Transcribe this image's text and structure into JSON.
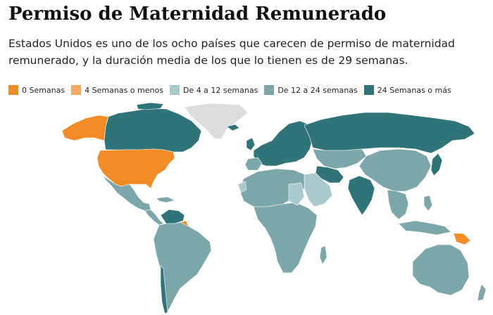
{
  "title": "Permiso de Maternidad Remunerado",
  "subtitle": "Estados Unidos es uno de los ocho países que carecen de permiso de maternidad remunerado, y la duración media de los que lo tienen es de 29 semanas.",
  "legend": [
    {
      "label": "0 Semanas",
      "color": "#f28a26"
    },
    {
      "label": "4 Semanas o menos",
      "color": "#f5a862"
    },
    {
      "label": "De 4 a 12 semanas",
      "color": "#a9c9cc"
    },
    {
      "label": "De 12 a 24 semanas",
      "color": "#7ba7aa"
    },
    {
      "label": "24 Semanas o más",
      "color": "#2f7479"
    }
  ],
  "colors": {
    "no_data": "#dcdcdc",
    "zero_weeks": "#f28a26",
    "four_or_less": "#f5a862",
    "four_to_twelve": "#a9c9cc",
    "twelve_to_twentyfour": "#7ba7aa",
    "twentyfour_plus": "#2f7479",
    "border": "#ffffff"
  }
}
